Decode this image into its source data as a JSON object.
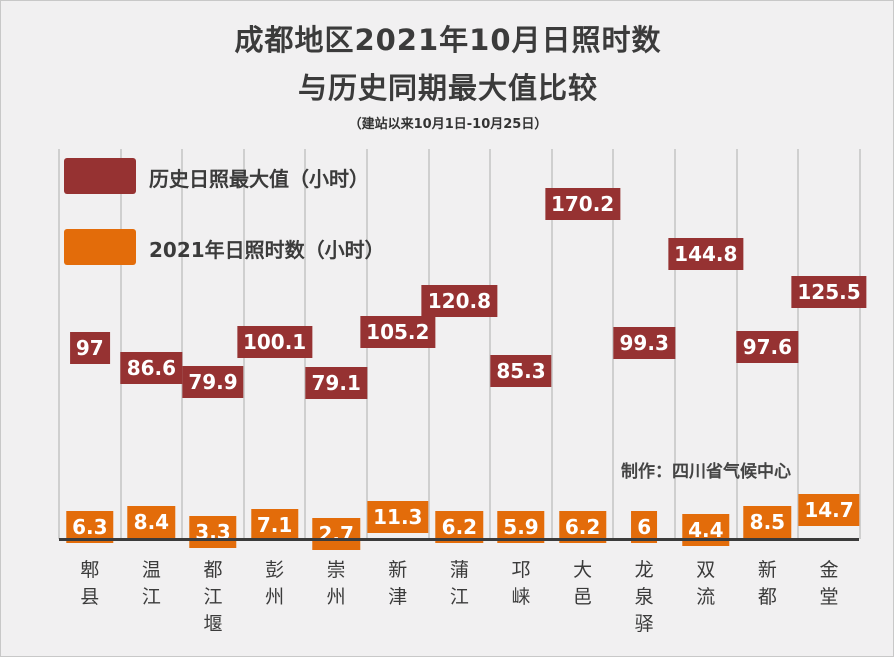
{
  "chart_data": {
    "type": "line",
    "title": "成都地区2021年10月日照时数",
    "title_line2": "与历史同期最大值比较",
    "subtitle": "（建站以来10月1日-10月25日）",
    "categories": [
      "郫县",
      "温江",
      "都江堰",
      "彭州",
      "崇州",
      "新津",
      "蒲江",
      "邛崃",
      "大邑",
      "龙泉驿",
      "双流",
      "新都",
      "金堂"
    ],
    "series": [
      {
        "name": "历史日照最大值（小时）",
        "color": "#963232",
        "values": [
          97,
          86.6,
          79.9,
          100.1,
          79.1,
          105.2,
          120.8,
          85.3,
          170.2,
          99.3,
          144.8,
          97.6,
          125.5
        ]
      },
      {
        "name": "2021年日照时数（小时）",
        "color": "#e36c0a",
        "values": [
          6.3,
          8.4,
          3.3,
          7.1,
          2.7,
          11.3,
          6.2,
          5.9,
          6.2,
          6,
          4.4,
          8.5,
          14.7
        ]
      }
    ],
    "ylim": [
      0,
      180
    ],
    "legend": "top-left",
    "grid": true,
    "annotation": "制作：四川省气候中心"
  }
}
